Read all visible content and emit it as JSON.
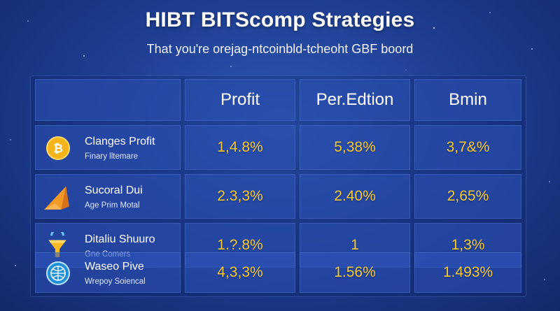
{
  "title": "HIBT BITScomp Strategies",
  "subtitle": "That you're orejag-ntcoinbld-tcheoht GBF boord",
  "table": {
    "headers": [
      "Profit",
      "Per.Edtion",
      "Bmin"
    ],
    "rows": [
      {
        "icon": "bitcoin-coin-icon",
        "name": "Clanges Profit",
        "sub": "Finary lltemare",
        "values": [
          "1,4.8%",
          "5,38%",
          "3,7&%"
        ]
      },
      {
        "icon": "orange-arrow-icon",
        "name": "Sucoral Dui",
        "sub": "Age Prim Motal",
        "values": [
          "2.3,3%",
          "2.40%",
          "2,65%"
        ]
      },
      {
        "icon": "funnel-icon",
        "name": "Ditaliu Shuuro",
        "sub": "Gne Comers",
        "values": [
          "1.?.8%",
          "1",
          "1,3%"
        ]
      },
      {
        "icon": "globe-badge-icon",
        "name": "Waseo Pive",
        "sub": "Wrepoy Soiencal",
        "values": [
          "4,3,3%",
          "1.56%",
          "1.493%"
        ]
      }
    ]
  },
  "colors": {
    "background": "#1f3f93",
    "cell": "#3056be",
    "value_text": "#f6c933"
  }
}
